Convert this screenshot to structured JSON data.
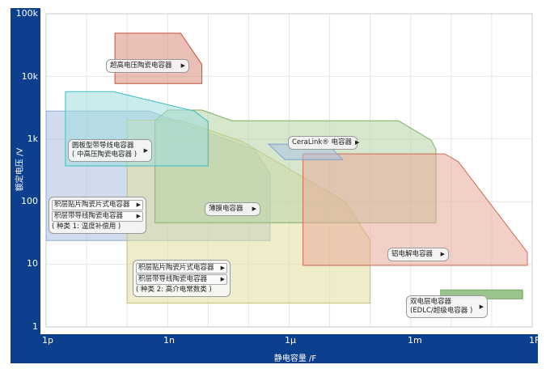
{
  "chart_data": {
    "type": "area",
    "xlabel": "静电容量 /F",
    "ylabel": "额定电压 /V",
    "xscale": "log",
    "yscale": "log",
    "xlim": [
      1e-12,
      1
    ],
    "ylim": [
      1,
      100000
    ],
    "x_ticks": [
      "1p",
      "1n",
      "1µ",
      "1m",
      "1F"
    ],
    "y_ticks": [
      "100k",
      "10k",
      "1k",
      "100",
      "10",
      "1"
    ],
    "grid": true,
    "regions": [
      {
        "id": "class1",
        "fill": "#a9bfe0",
        "stroke": "#8faad6",
        "points": [
          [
            1e-12,
            2800
          ],
          [
            3.5e-10,
            2800
          ],
          [
            1.4e-07,
            680
          ],
          [
            3.4e-07,
            280
          ],
          [
            3.4e-07,
            24
          ],
          [
            1e-12,
            24
          ]
        ]
      },
      {
        "id": "class2",
        "fill": "#e2df9c",
        "stroke": "#c9c066",
        "points": [
          [
            1e-10,
            2000
          ],
          [
            2e-09,
            2000
          ],
          [
            7e-08,
            910
          ],
          [
            2.5e-05,
            98
          ],
          [
            0.0001,
            24
          ],
          [
            0.0001,
            2.4
          ],
          [
            1e-10,
            2.4
          ]
        ]
      },
      {
        "id": "film",
        "fill": "#b6d3a6",
        "stroke": "#7fae66",
        "points": [
          [
            4.9e-10,
            1960
          ],
          [
            1e-09,
            2900
          ],
          [
            7e-09,
            2900
          ],
          [
            3.9e-08,
            1960
          ],
          [
            0.0005,
            1960
          ],
          [
            0.0032,
            960
          ],
          [
            0.0042,
            680
          ],
          [
            0.0042,
            46
          ],
          [
            4.9e-10,
            46
          ]
        ]
      },
      {
        "id": "aluminum",
        "fill": "#e7a999",
        "stroke": "#d06a55",
        "points": [
          [
            2.2e-06,
            580
          ],
          [
            0.0069,
            580
          ],
          [
            0.015,
            434
          ],
          [
            0.76,
            15.5
          ],
          [
            0.76,
            9.6
          ],
          [
            2.2e-06,
            9.6
          ]
        ]
      },
      {
        "id": "disc",
        "fill": "#9fdcdc",
        "stroke": "#3bbdbd",
        "points": [
          [
            3e-12,
            5700
          ],
          [
            4.6e-11,
            5700
          ],
          [
            4.5e-09,
            2800
          ],
          [
            1e-08,
            1900
          ],
          [
            1e-08,
            372
          ],
          [
            3e-12,
            372
          ]
        ]
      },
      {
        "id": "ultrahigh",
        "fill": "#d98b79",
        "stroke": "#c4513c",
        "points": [
          [
            5e-11,
            49000
          ],
          [
            2.1e-09,
            49000
          ],
          [
            7e-09,
            15500
          ],
          [
            7e-09,
            7700
          ],
          [
            5e-11,
            7700
          ]
        ]
      },
      {
        "id": "ceralink",
        "fill": "#a9c3e3",
        "stroke": "#7f9fcf",
        "points": [
          [
            3.1e-07,
            830
          ],
          [
            8.9e-06,
            830
          ],
          [
            2.1e-05,
            470
          ],
          [
            7.8e-07,
            470
          ]
        ]
      },
      {
        "id": "edlc",
        "fill": "#8fbf80",
        "stroke": "#7aa868",
        "points": [
          [
            0.0055,
            3.9
          ],
          [
            0.58,
            3.9
          ],
          [
            0.58,
            2.8
          ],
          [
            0.0055,
            2.8
          ]
        ]
      }
    ],
    "labels": {
      "ultrahigh": "超高电压陶瓷电容器",
      "disc_1": "圆板型带导线电容器",
      "disc_2": "( 中高压陶瓷电容器 )",
      "class1_chip": "积层贴片陶瓷片式电容器",
      "class1_leaded": "积层带导线陶瓷电容器",
      "class1_note": "( 种类 1: 温度补偿用 )",
      "film": "薄膜电容器",
      "class2_chip": "积层贴片陶瓷片式电容器",
      "class2_leaded": "积层带导线陶瓷电容器",
      "class2_note": "( 种类 2: 高介电常数类 )",
      "ceralink": "CeraLink® 电容器",
      "aluminum": "铝电解电容器",
      "edlc_1": "双电层电容器",
      "edlc_2": "(EDLC/超级电容器 )"
    }
  },
  "arrow": "▶"
}
